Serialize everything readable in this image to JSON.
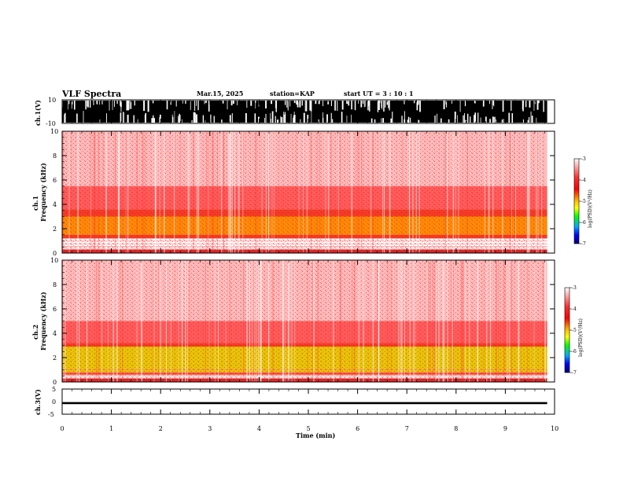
{
  "header": {
    "title": "VLF Spectra",
    "date": "Mar.15, 2025",
    "station": "station=KAP",
    "start": "start  UT  =   3  : 10 : 1"
  },
  "chart_data": [
    {
      "type": "line",
      "name": "ch1-waveform",
      "ylabel": "ch.1(V)",
      "yticks": [
        "10",
        "-10"
      ],
      "ylim": [
        -10,
        10
      ],
      "xlim": [
        0,
        10
      ],
      "data_extent_min": 9.85,
      "description_of_values": "dense black envelope, mostly saturated between -10 and 10 with frequent white gaps"
    },
    {
      "type": "heatmap",
      "name": "ch1-spectrogram",
      "ylabel_line1": "ch.1",
      "ylabel_line2": "Frequency (kHz)",
      "yticks": [
        "0",
        "2",
        "4",
        "6",
        "8",
        "10"
      ],
      "ylim": [
        0,
        10
      ],
      "xlim": [
        0,
        10
      ],
      "bands": [
        {
          "from_khz": 0,
          "to_khz": 0.3,
          "color": "#cc0000"
        },
        {
          "from_khz": 1.2,
          "to_khz": 3.6,
          "color": "#ee1a00"
        },
        {
          "from_khz": 1.5,
          "to_khz": 3.0,
          "color": "#ff9a00"
        },
        {
          "from_khz": 3.6,
          "to_khz": 5.5,
          "color": "#ff4040"
        },
        {
          "from_khz": 5.5,
          "to_khz": 10,
          "color": "#ffb0b0"
        }
      ],
      "colorbar": {
        "label": "log(PSD)(V²/Hz)",
        "ticks": [
          "-3",
          "-4",
          "-5",
          "-6",
          "-7"
        ],
        "range": [
          -7,
          -3
        ]
      }
    },
    {
      "type": "heatmap",
      "name": "ch2-spectrogram",
      "ylabel_line1": "ch.2",
      "ylabel_line2": "Frequency (kHz)",
      "yticks": [
        "0",
        "2",
        "4",
        "6",
        "8",
        "10"
      ],
      "ylim": [
        0,
        10
      ],
      "xlim": [
        0,
        10
      ],
      "bands": [
        {
          "from_khz": 0,
          "to_khz": 0.3,
          "color": "#cc0000"
        },
        {
          "from_khz": 0.6,
          "to_khz": 3.2,
          "color": "#ee1a00"
        },
        {
          "from_khz": 0.8,
          "to_khz": 2.9,
          "color": "#e0e000"
        },
        {
          "from_khz": 3.2,
          "to_khz": 5.0,
          "color": "#ff4040"
        },
        {
          "from_khz": 5.0,
          "to_khz": 10,
          "color": "#ffb0b0"
        }
      ],
      "colorbar": {
        "label": "log(PSD)(V²/Hz)",
        "ticks": [
          "-3",
          "-4",
          "-5",
          "-6",
          "-7"
        ],
        "range": [
          -7,
          -3
        ]
      }
    },
    {
      "type": "line",
      "name": "ch3-waveform",
      "ylabel": "ch.3(V)",
      "yticks": [
        "5",
        "0",
        "-5"
      ],
      "ylim": [
        -5,
        5
      ],
      "xlim": [
        0,
        10
      ],
      "level_band": [
        -1,
        -0.2
      ],
      "xlabel": "Time (min)",
      "xticks": [
        "0",
        "1",
        "2",
        "3",
        "4",
        "5",
        "6",
        "7",
        "8",
        "9",
        "10"
      ]
    }
  ],
  "colors": {
    "axis": "#000000",
    "background": "#ffffff",
    "colorbar_stops": [
      "#ffffff",
      "#ff0000",
      "#ffb000",
      "#ffff00",
      "#00ff00",
      "#00a0ff",
      "#0000ff",
      "#000080"
    ]
  }
}
